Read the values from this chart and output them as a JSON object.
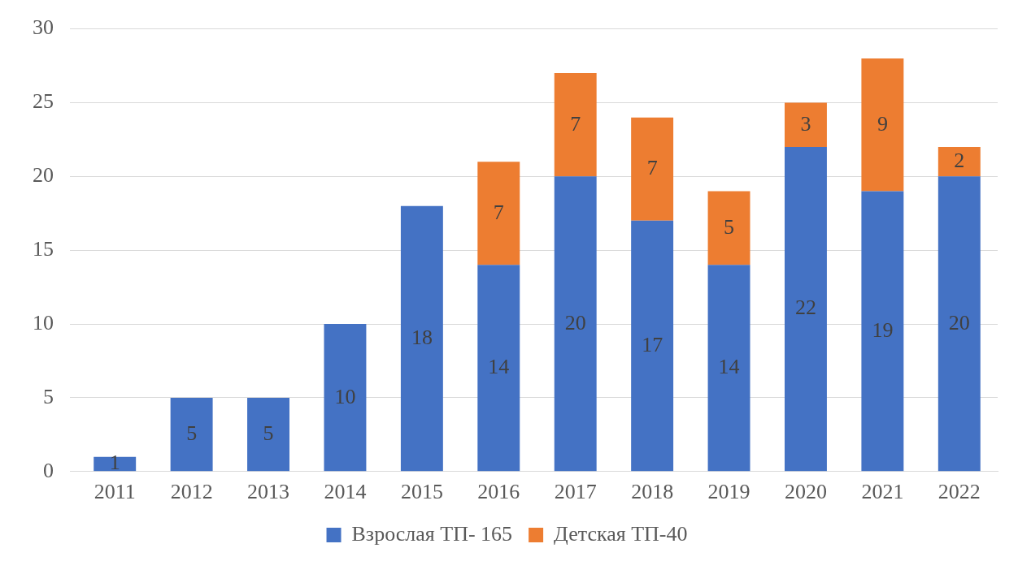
{
  "chart_data": {
    "type": "bar",
    "stacked": true,
    "categories": [
      "2011",
      "2012",
      "2013",
      "2014",
      "2015",
      "2016",
      "2017",
      "2018",
      "2019",
      "2020",
      "2021",
      "2022"
    ],
    "series": [
      {
        "name": "Взрослая ТП- 165",
        "color": "#4472c4",
        "values": [
          1,
          5,
          5,
          10,
          18,
          14,
          20,
          17,
          14,
          22,
          19,
          20
        ]
      },
      {
        "name": "Детская ТП-40",
        "color": "#ed7d31",
        "values": [
          null,
          null,
          null,
          null,
          null,
          7,
          7,
          7,
          5,
          3,
          9,
          2
        ]
      }
    ],
    "ylim": [
      0,
      30
    ],
    "yticks": [
      0,
      5,
      10,
      15,
      20,
      25,
      30
    ],
    "grid": "y",
    "legend": "bottom",
    "data_labels": true
  }
}
